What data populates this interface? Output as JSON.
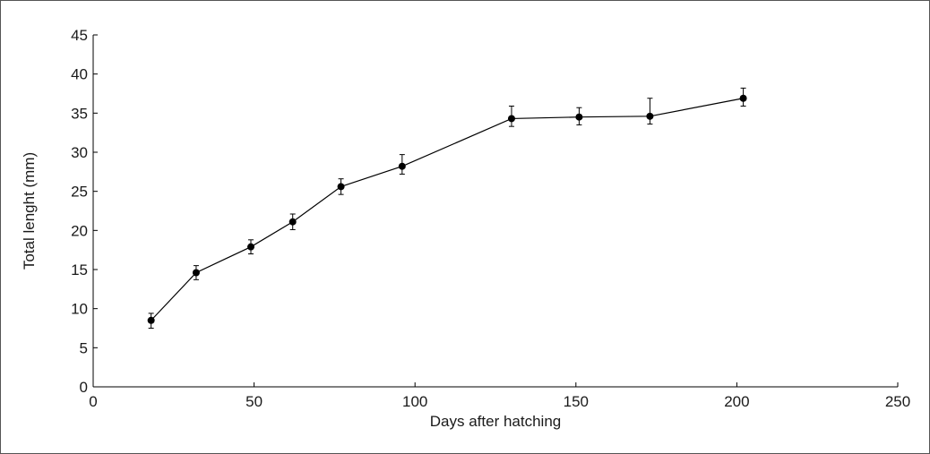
{
  "chart_data": {
    "type": "line",
    "title": "",
    "xlabel": "Days after hatching",
    "ylabel": "Total lenght (mm)",
    "xlim": [
      0,
      250
    ],
    "ylim": [
      0,
      45
    ],
    "x_ticks": [
      "0",
      "50",
      "100",
      "150",
      "200",
      "250"
    ],
    "y_ticks": [
      "0",
      "5",
      "10",
      "15",
      "20",
      "25",
      "30",
      "35",
      "40",
      "45"
    ],
    "grid": false,
    "legend": "none",
    "marker": "filled-circle",
    "color": "#000000",
    "series": [
      {
        "x": [
          18,
          32,
          49,
          62,
          77,
          96,
          130,
          151,
          173,
          202
        ],
        "y": [
          8.5,
          14.6,
          17.9,
          21.1,
          25.6,
          28.2,
          34.3,
          34.5,
          34.6,
          36.9
        ],
        "error_up": [
          0.9,
          0.9,
          0.9,
          1.0,
          1.0,
          1.5,
          1.6,
          1.2,
          2.3,
          1.3
        ],
        "error_down": [
          1.0,
          0.9,
          0.9,
          1.0,
          1.0,
          1.0,
          1.0,
          1.0,
          1.0,
          1.0
        ]
      }
    ]
  }
}
